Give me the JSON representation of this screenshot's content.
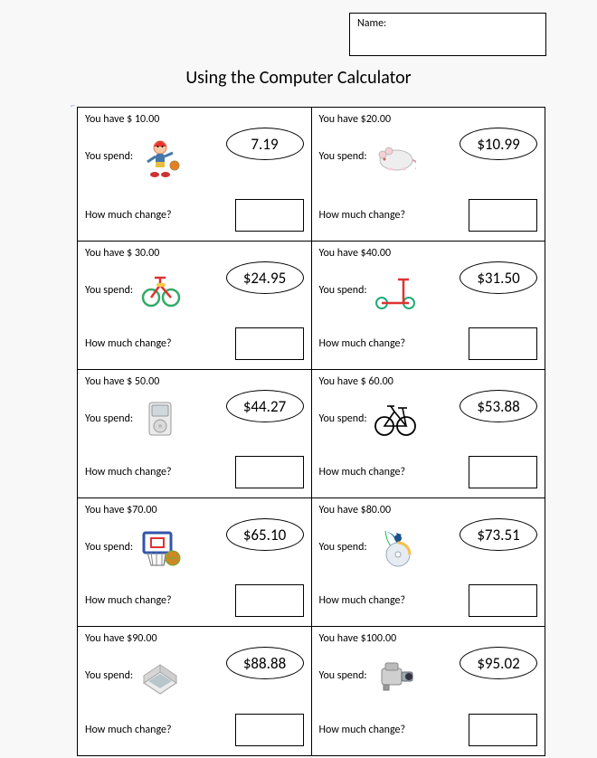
{
  "name_label": "Name:",
  "title": "Using the Computer Calculator",
  "labels": {
    "you_have_prefix": "You have ",
    "you_spend": "You spend:",
    "change": "How much change?"
  },
  "cells": [
    {
      "have": "$ 10.00",
      "price": "7.19",
      "icon": "clown"
    },
    {
      "have": "$20.00",
      "price": "$10.99",
      "icon": "mouse"
    },
    {
      "have": "$ 30.00",
      "price": "$24.95",
      "icon": "tricycle"
    },
    {
      "have": "$40.00",
      "price": "$31.50",
      "icon": "scooter"
    },
    {
      "have": "$ 50.00",
      "price": "$44.27",
      "icon": "mp3"
    },
    {
      "have": "$ 60.00",
      "price": "$53.88",
      "icon": "bicycle"
    },
    {
      "have": "$70.00",
      "price": "$65.10",
      "icon": "basketball"
    },
    {
      "have": "$80.00",
      "price": "$73.51",
      "icon": "music-cd"
    },
    {
      "have": "$90.00",
      "price": "$88.88",
      "icon": "handheld"
    },
    {
      "have": "$100.00",
      "price": "$95.02",
      "icon": "camcorder"
    }
  ],
  "colors": {
    "page_bg": "#f8f8f8",
    "cell_bg": "#ffffff",
    "border": "#000000",
    "anchor": "#7e99c7"
  }
}
